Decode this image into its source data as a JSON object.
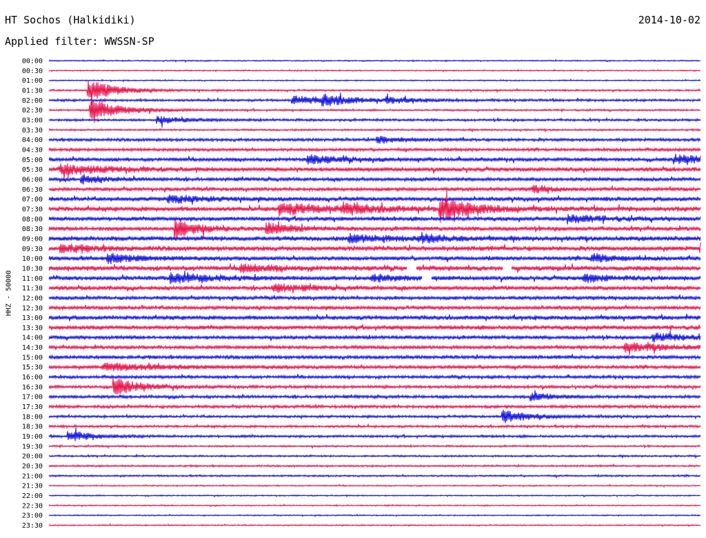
{
  "header": {
    "station": "HT Sochos (Halkidiki)",
    "date": "2014-10-02",
    "filter": "Applied filter: WWSSN-SP"
  },
  "colors": {
    "even": "#1010e0",
    "odd": "#e8104a"
  },
  "chart_data": {
    "type": "line",
    "title": "HT Sochos (Halkidiki)",
    "subtitle": "Applied filter: WWSSN-SP",
    "ylabel": "HHZ - 50000",
    "xlabel": "",
    "row_labels": [
      "00:00",
      "00:30",
      "01:00",
      "01:30",
      "02:00",
      "02:30",
      "03:00",
      "03:30",
      "04:00",
      "04:30",
      "05:00",
      "05:30",
      "06:00",
      "06:30",
      "07:00",
      "07:30",
      "08:00",
      "08:30",
      "09:00",
      "09:30",
      "10:00",
      "10:30",
      "11:00",
      "11:30",
      "12:00",
      "12:30",
      "13:00",
      "13:30",
      "14:00",
      "14:30",
      "15:00",
      "15:30",
      "16:00",
      "16:30",
      "17:00",
      "17:30",
      "18:00",
      "18:30",
      "19:00",
      "19:30",
      "20:00",
      "20:30",
      "21:00",
      "21:30",
      "22:00",
      "22:30",
      "23:00",
      "23:30"
    ],
    "row_minutes": 30,
    "noise_level": [
      1,
      1,
      1,
      1.5,
      2,
      1.5,
      2,
      1.5,
      2.5,
      2.5,
      3,
      3.5,
      3,
      3,
      3.5,
      4,
      3.5,
      3.5,
      4,
      4,
      3.5,
      4,
      3.5,
      3.5,
      3,
      3,
      3.5,
      3.5,
      3,
      3,
      3,
      3,
      2.5,
      2.5,
      2.5,
      2.5,
      2,
      2,
      2,
      1.5,
      1.5,
      1.5,
      1.5,
      1,
      1,
      1,
      1,
      1
    ],
    "events": [
      {
        "row": 3,
        "minute": 1.8,
        "amp": 16,
        "dur": 1.2
      },
      {
        "row": 4,
        "minute": 11.2,
        "amp": 6,
        "dur": 1.5
      },
      {
        "row": 4,
        "minute": 12.6,
        "amp": 7,
        "dur": 1.3
      },
      {
        "row": 4,
        "minute": 15.5,
        "amp": 4,
        "dur": 1.2
      },
      {
        "row": 5,
        "minute": 1.9,
        "amp": 14,
        "dur": 1.5
      },
      {
        "row": 6,
        "minute": 5.0,
        "amp": 5,
        "dur": 1.3
      },
      {
        "row": 8,
        "minute": 15.1,
        "amp": 5,
        "dur": 1.0
      },
      {
        "row": 10,
        "minute": 11.9,
        "amp": 6,
        "dur": 1.5
      },
      {
        "row": 10,
        "minute": 28.8,
        "amp": 6,
        "dur": 2.0
      },
      {
        "row": 11,
        "minute": 0.5,
        "amp": 7,
        "dur": 2.0
      },
      {
        "row": 12,
        "minute": 1.5,
        "amp": 6,
        "dur": 1.0
      },
      {
        "row": 13,
        "minute": 22.3,
        "amp": 5,
        "dur": 0.8
      },
      {
        "row": 14,
        "minute": 5.5,
        "amp": 5,
        "dur": 1.5
      },
      {
        "row": 15,
        "minute": 10.6,
        "amp": 8,
        "dur": 2.0
      },
      {
        "row": 15,
        "minute": 13.5,
        "amp": 6,
        "dur": 1.5
      },
      {
        "row": 15,
        "minute": 18.0,
        "amp": 16,
        "dur": 1.4
      },
      {
        "row": 16,
        "minute": 23.9,
        "amp": 5,
        "dur": 1.5
      },
      {
        "row": 17,
        "minute": 5.8,
        "amp": 14,
        "dur": 1.0
      },
      {
        "row": 17,
        "minute": 10.0,
        "amp": 9,
        "dur": 1.0
      },
      {
        "row": 18,
        "minute": 13.8,
        "amp": 5,
        "dur": 2.0
      },
      {
        "row": 18,
        "minute": 17.2,
        "amp": 6,
        "dur": 0.8
      },
      {
        "row": 19,
        "minute": 0.5,
        "amp": 5,
        "dur": 1.5
      },
      {
        "row": 19,
        "minute": 30.0,
        "amp": 8,
        "dur": 1.0
      },
      {
        "row": 20,
        "minute": 2.7,
        "amp": 6,
        "dur": 1.5
      },
      {
        "row": 20,
        "minute": 25.0,
        "amp": 6,
        "dur": 1.0
      },
      {
        "row": 21,
        "minute": 8.8,
        "amp": 5,
        "dur": 1.5
      },
      {
        "row": 22,
        "minute": 5.6,
        "amp": 6,
        "dur": 2.0
      },
      {
        "row": 22,
        "minute": 14.9,
        "amp": 5,
        "dur": 1.2
      },
      {
        "row": 22,
        "minute": 24.6,
        "amp": 5,
        "dur": 1.2
      },
      {
        "row": 23,
        "minute": 10.3,
        "amp": 5,
        "dur": 1.5
      },
      {
        "row": 28,
        "minute": 27.8,
        "amp": 6,
        "dur": 1.5
      },
      {
        "row": 29,
        "minute": 26.5,
        "amp": 6,
        "dur": 2.0
      },
      {
        "row": 31,
        "minute": 2.5,
        "amp": 5,
        "dur": 2.5
      },
      {
        "row": 33,
        "minute": 3.0,
        "amp": 12,
        "dur": 1.2
      },
      {
        "row": 34,
        "minute": 22.2,
        "amp": 5,
        "dur": 1.0
      },
      {
        "row": 36,
        "minute": 20.9,
        "amp": 10,
        "dur": 1.2
      },
      {
        "row": 38,
        "minute": 0.9,
        "amp": 7,
        "dur": 1.2
      }
    ],
    "gaps": [
      {
        "row": 21,
        "start": 16.5,
        "end": 16.9
      },
      {
        "row": 21,
        "start": 20.9,
        "end": 21.3
      },
      {
        "row": 22,
        "start": 17.2,
        "end": 17.6
      }
    ]
  }
}
